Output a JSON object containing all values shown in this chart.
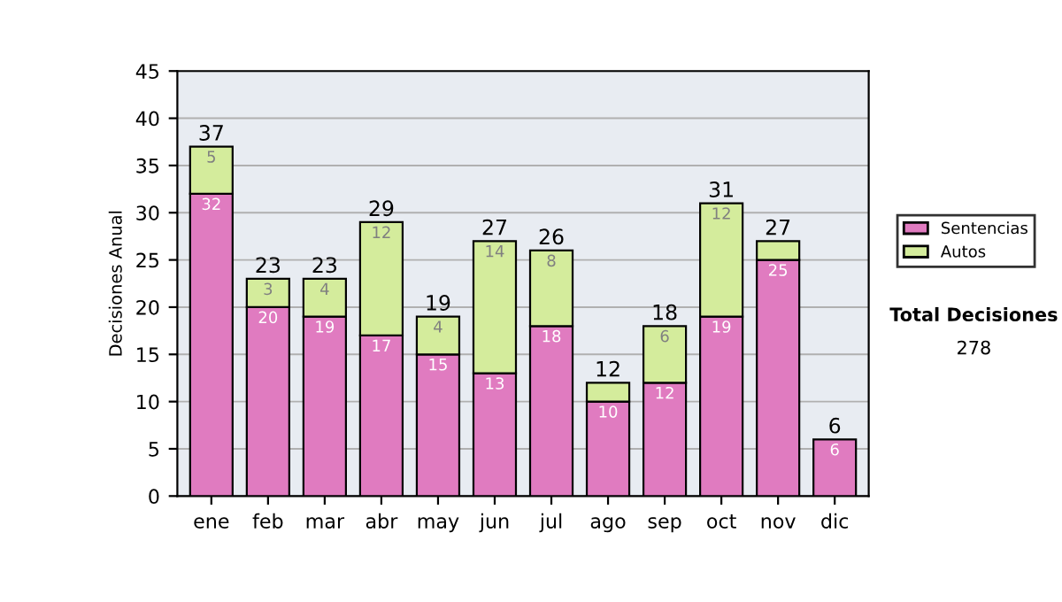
{
  "chart_data": {
    "type": "bar",
    "stacked": true,
    "ylabel": "Decisiones Anual",
    "categories": [
      "ene",
      "feb",
      "mar",
      "abr",
      "may",
      "jun",
      "jul",
      "ago",
      "sep",
      "oct",
      "nov",
      "dic"
    ],
    "series": [
      {
        "name": "Sentencias",
        "color": "#e07bc0",
        "values": [
          32,
          20,
          19,
          17,
          15,
          13,
          18,
          10,
          12,
          19,
          25,
          6
        ],
        "value_labels": [
          "32",
          "20",
          "19",
          "17",
          "15",
          "13",
          "18",
          "10",
          "12",
          "19",
          "25",
          "6"
        ]
      },
      {
        "name": "Autos",
        "color": "#d4ec9c",
        "values": [
          5,
          3,
          4,
          12,
          4,
          14,
          8,
          2,
          6,
          12,
          2,
          null
        ],
        "value_labels": [
          "5",
          "3",
          "4",
          "12",
          "4",
          "14",
          "8",
          null,
          "6",
          "12",
          null,
          null
        ]
      }
    ],
    "totals": [
      "37",
      "23",
      "23",
      "29",
      "19",
      "27",
      "26",
      "12",
      "18",
      "31",
      "27",
      "6"
    ],
    "ylim": [
      0,
      45
    ],
    "yticks": [
      0,
      5,
      10,
      15,
      20,
      25,
      30,
      35,
      40,
      45
    ],
    "grid": "y",
    "legend": "right",
    "annotations": [
      "Total Decisiones",
      "278"
    ]
  }
}
